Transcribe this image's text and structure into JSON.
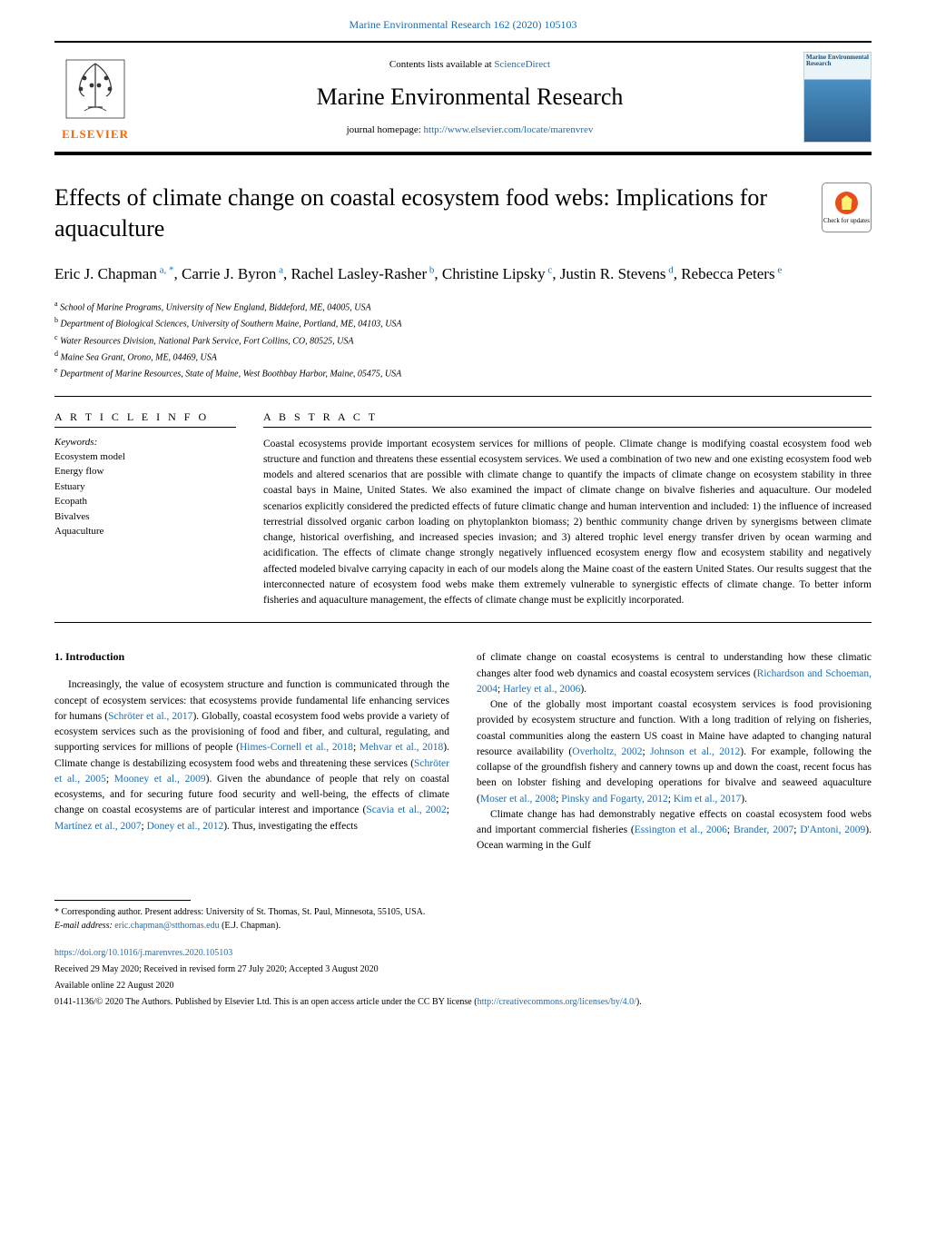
{
  "header": {
    "citation": "Marine Environmental Research 162 (2020) 105103",
    "contents_prefix": "Contents lists available at ",
    "contents_link": "ScienceDirect",
    "journal_name": "Marine Environmental Research",
    "homepage_prefix": "journal homepage: ",
    "homepage_url": "http://www.elsevier.com/locate/marenvrev",
    "elsevier_label": "ELSEVIER",
    "cover_title": "Marine Environmental Research"
  },
  "check_updates": {
    "label": "Check for updates"
  },
  "article": {
    "title": "Effects of climate change on coastal ecosystem food webs: Implications for aquaculture",
    "authors_html": "Eric J. Chapman<sup> a, *</sup>, Carrie J. Byron<sup> a</sup>, Rachel Lasley-Rasher<sup> b</sup>, Christine Lipsky<sup> c</sup>, Justin R. Stevens<sup> d</sup>, Rebecca Peters<sup> e</sup>",
    "affiliations": [
      {
        "sup": "a",
        "text": "School of Marine Programs, University of New England, Biddeford, ME, 04005, USA"
      },
      {
        "sup": "b",
        "text": "Department of Biological Sciences, University of Southern Maine, Portland, ME, 04103, USA"
      },
      {
        "sup": "c",
        "text": "Water Resources Division, National Park Service, Fort Collins, CO, 80525, USA"
      },
      {
        "sup": "d",
        "text": "Maine Sea Grant, Orono, ME, 04469, USA"
      },
      {
        "sup": "e",
        "text": "Department of Marine Resources, State of Maine, West Boothbay Harbor, Maine, 05475, USA"
      }
    ]
  },
  "info": {
    "heading": "A R T I C L E  I N F O",
    "keywords_label": "Keywords:",
    "keywords": [
      "Ecosystem model",
      "Energy flow",
      "Estuary",
      "Ecopath",
      "Bivalves",
      "Aquaculture"
    ]
  },
  "abstract": {
    "heading": "A B S T R A C T",
    "text": "Coastal ecosystems provide important ecosystem services for millions of people. Climate change is modifying coastal ecosystem food web structure and function and threatens these essential ecosystem services. We used a combination of two new and one existing ecosystem food web models and altered scenarios that are possible with climate change to quantify the impacts of climate change on ecosystem stability in three coastal bays in Maine, United States. We also examined the impact of climate change on bivalve fisheries and aquaculture. Our modeled scenarios explicitly considered the predicted effects of future climatic change and human intervention and included: 1) the influence of increased terrestrial dissolved organic carbon loading on phytoplankton biomass; 2) benthic community change driven by synergisms between climate change, historical overfishing, and increased species invasion; and 3) altered trophic level energy transfer driven by ocean warming and acidification. The effects of climate change strongly negatively influenced ecosystem energy flow and ecosystem stability and negatively affected modeled bivalve carrying capacity in each of our models along the Maine coast of the eastern United States. Our results suggest that the interconnected nature of ecosystem food webs make them extremely vulnerable to synergistic effects of climate change. To better inform fisheries and aquaculture management, the effects of climate change must be explicitly incorporated."
  },
  "body": {
    "section_number": "1.",
    "section_title": "Introduction",
    "left_paragraphs": [
      "Increasingly, the value of ecosystem structure and function is communicated through the concept of ecosystem services: that ecosystems provide fundamental life enhancing services for humans (Schröter et al., 2017). Globally, coastal ecosystem food webs provide a variety of ecosystem services such as the provisioning of food and fiber, and cultural, regulating, and supporting services for millions of people (Himes-Cornell et al., 2018; Mehvar et al., 2018). Climate change is destabilizing ecosystem food webs and threatening these services (Schröter et al., 2005; Mooney et al., 2009). Given the abundance of people that rely on coastal ecosystems, and for securing future food security and well-being, the effects of climate change on coastal ecosystems are of particular interest and importance (Scavia et al., 2002; Martínez et al., 2007; Doney et al., 2012). Thus, investigating the effects"
    ],
    "right_paragraphs": [
      "of climate change on coastal ecosystems is central to understanding how these climatic changes alter food web dynamics and coastal ecosystem services (Richardson and Schoeman, 2004; Harley et al., 2006).",
      "One of the globally most important coastal ecosystem services is food provisioning provided by ecosystem structure and function. With a long tradition of relying on fisheries, coastal communities along the eastern US coast in Maine have adapted to changing natural resource availability (Overholtz, 2002; Johnson et al., 2012). For example, following the collapse of the groundfish fishery and cannery towns up and down the coast, recent focus has been on lobster fishing and developing operations for bivalve and seaweed aquaculture (Moser et al., 2008; Pinsky and Fogarty, 2012; Kim et al., 2017).",
      "Climate change has had demonstrably negative effects on coastal ecosystem food webs and important commercial fisheries (Essington et al., 2006; Brander, 2007; D'Antoni, 2009). Ocean warming in the Gulf"
    ]
  },
  "footer": {
    "corresponding": "* Corresponding author. Present address: University of St. Thomas, St. Paul, Minnesota, 55105, USA.",
    "email_label": "E-mail address: ",
    "email": "eric.chapman@stthomas.edu",
    "email_suffix": " (E.J. Chapman).",
    "doi": "https://doi.org/10.1016/j.marenvres.2020.105103",
    "received": "Received 29 May 2020; Received in revised form 27 July 2020; Accepted 3 August 2020",
    "available": "Available online 22 August 2020",
    "copyright_prefix": "0141-1136/© 2020 The Authors. Published by Elsevier Ltd. This is an open access article under the CC BY license (",
    "copyright_link": "http://creativecommons.org/licenses/by/4.0/",
    "copyright_suffix": ")."
  },
  "colors": {
    "link": "#1a6db5",
    "elsevier_orange": "#ff6600",
    "text": "#000000",
    "background": "#ffffff"
  }
}
